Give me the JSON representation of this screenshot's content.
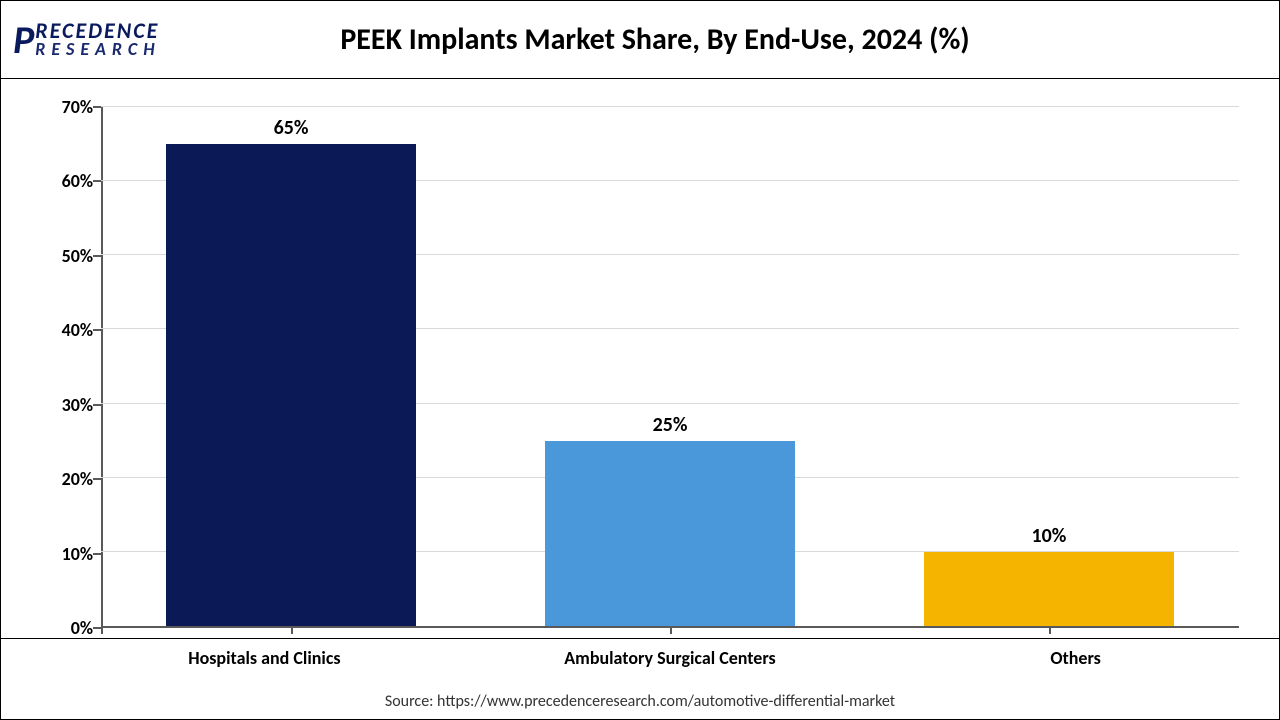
{
  "logo": {
    "brand_top": "RECEDENCE",
    "brand_bottom": "RESEARCH"
  },
  "chart": {
    "type": "bar",
    "title": "PEEK Implants Market Share, By End-Use, 2024 (%)",
    "title_fontsize": 30,
    "categories": [
      "Hospitals and Clinics",
      "Ambulatory Surgical Centers",
      "Others"
    ],
    "values": [
      65,
      25,
      10
    ],
    "value_labels": [
      "65%",
      "25%",
      "10%"
    ],
    "bar_colors": [
      "#0b1957",
      "#4a98d9",
      "#f5b400"
    ],
    "ylim": [
      0,
      70
    ],
    "ytick_step": 10,
    "yticks": [
      0,
      10,
      20,
      30,
      40,
      50,
      60,
      70
    ],
    "ytick_labels": [
      "0%",
      "10%",
      "20%",
      "30%",
      "40%",
      "50%",
      "60%",
      "70%"
    ],
    "grid_color": "#d9d9d9",
    "axis_color": "#595959",
    "background_color": "#ffffff",
    "label_fontsize": 18,
    "value_label_fontsize": 20,
    "bar_width_pct": 22,
    "bar_positions_pct": [
      16.7,
      50,
      83.3
    ]
  },
  "source": "Source: https://www.precedenceresearch.com/automotive-differential-market"
}
